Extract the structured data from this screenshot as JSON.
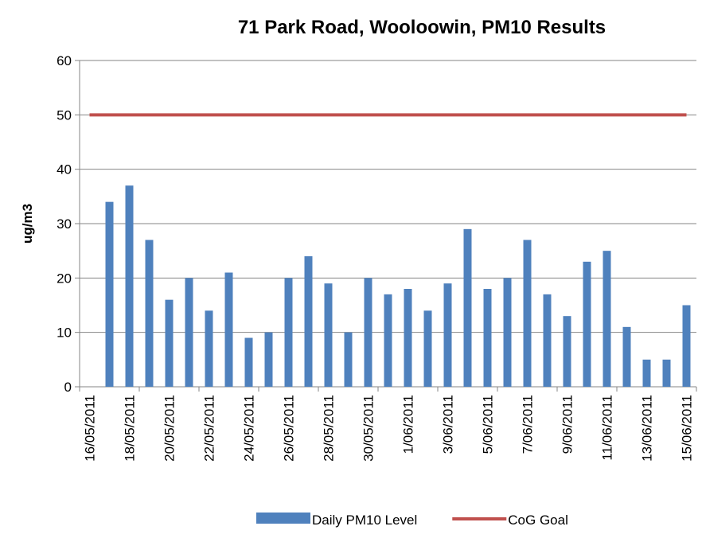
{
  "chart_data": {
    "type": "bar",
    "title": "71 Park Road, Wooloowin, PM10 Results",
    "y_label": "ug/m3",
    "categories": [
      "16/05/2011",
      null,
      "18/05/2011",
      null,
      "20/05/2011",
      null,
      "22/05/2011",
      null,
      "24/05/2011",
      null,
      "26/05/2011",
      null,
      "28/05/2011",
      null,
      "30/05/2011",
      null,
      "1/06/2011",
      null,
      "3/06/2011",
      null,
      "5/06/2011",
      null,
      "7/06/2011",
      null,
      "9/06/2011",
      null,
      "11/06/2011",
      null,
      "13/06/2011",
      null,
      "15/06/2011"
    ],
    "series": [
      {
        "name": "Daily PM10 Level",
        "type": "bar",
        "color": "#4f81bd",
        "values": [
          null,
          34,
          37,
          27,
          16,
          20,
          14,
          21,
          9,
          10,
          20,
          24,
          19,
          10,
          20,
          17,
          18,
          14,
          19,
          29,
          18,
          20,
          27,
          17,
          13,
          23,
          25,
          11,
          5,
          5,
          15
        ]
      },
      {
        "name": "CoG Goal",
        "type": "line",
        "color": "#c0504d",
        "values": [
          50,
          50,
          50,
          50,
          50,
          50,
          50,
          50,
          50,
          50,
          50,
          50,
          50,
          50,
          50,
          50,
          50,
          50,
          50,
          50,
          50,
          50,
          50,
          50,
          50,
          50,
          50,
          50,
          50,
          50,
          50
        ]
      }
    ],
    "ylim": [
      0,
      60
    ],
    "yticks": [
      0,
      10,
      20,
      30,
      40,
      50,
      60
    ],
    "grid": true,
    "legend": "bottom"
  }
}
